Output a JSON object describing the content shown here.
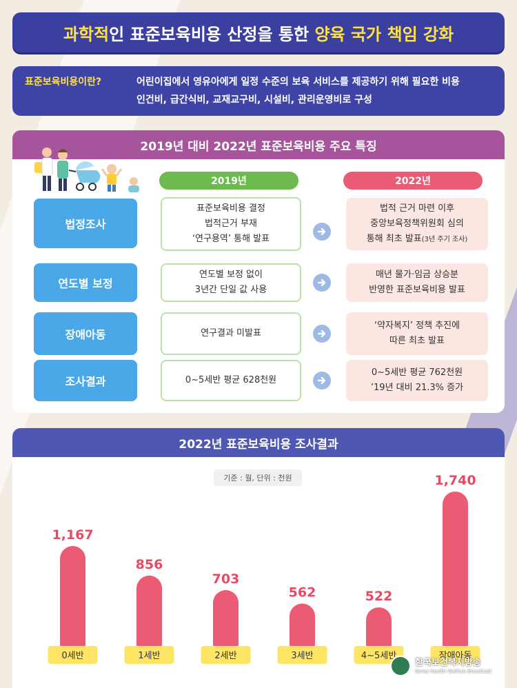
{
  "title": {
    "part1": "과학적",
    "part2": "인 표준보육비용 산정을 통한 ",
    "part3": "양육 국가 책임 강화"
  },
  "definition": {
    "label": "표준보육비용이란?",
    "line1": "어린이집에서 영유아에게 일정 수준의 보육 서비스를 제공하기 위해 필요한 비용",
    "line2": "인건비, 급간식비, 교재교구비, 시설비, 관리운영비로 구성"
  },
  "comparison": {
    "heading": "2019년 대비 2022년 표준보육비용 주요 특징",
    "col_old": "2019년",
    "col_new": "2022년",
    "rows": [
      {
        "label": "법정조사",
        "old": [
          "표준보육비용 결정",
          "법적근거 부재",
          "‘연구용역’ 통해 발표"
        ],
        "new": [
          "법적 근거 마련 이후",
          "중앙보육정책위원회 심의",
          "통해 최초 발표"
        ],
        "new_note": "(3년 주기 조사)"
      },
      {
        "label": "연도별 보정",
        "old": [
          "연도별 보정 없이",
          "3년간 단일 값 사용"
        ],
        "new": [
          "매년 물가·임금 상승분",
          "반영한 표준보육비용 발표"
        ]
      },
      {
        "label": "장애아동",
        "old": [
          "연구결과 미발표"
        ],
        "new": [
          "‘약자복지’ 정책 추진에",
          "따른 최초 발표"
        ]
      },
      {
        "label": "조사결과",
        "old": [
          "0~5세반 평균 628천원"
        ],
        "new": [
          "0~5세반 평균 762천원",
          "’19년 대비 21.3% 증가"
        ]
      }
    ]
  },
  "chart_section": {
    "heading": "2022년 표준보육비용 조사결과",
    "basis": "기준 : 월, 단위 : 천원"
  },
  "chart_data": {
    "type": "bar",
    "categories": [
      "0세반",
      "1세반",
      "2세반",
      "3세반",
      "4~5세반",
      "장애아동"
    ],
    "values": [
      1167,
      856,
      703,
      562,
      522,
      1740
    ],
    "value_labels": [
      "1,167",
      "856",
      "703",
      "562",
      "522",
      "1,740"
    ],
    "colors": {
      "bar": "#ec5b74",
      "label": "#e84a64",
      "category_bg": "#ffe566"
    }
  },
  "watermark": {
    "name": "한국보건복지방송",
    "sub": "Korea Health Welfare Broadcast"
  }
}
